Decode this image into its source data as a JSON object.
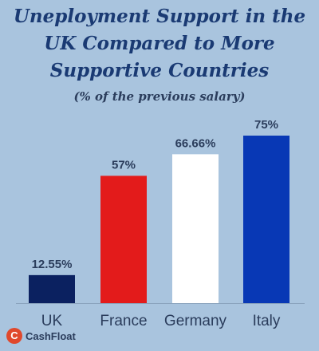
{
  "chart_data": {
    "type": "bar",
    "title": "Uneployment Support in the UK Compared to More Supportive Countries",
    "title_lines": [
      "Uneployment Support in the",
      "UK Compared to More",
      "Supportive Countries"
    ],
    "subtitle": "(% of the previous salary)",
    "categories": [
      "UK",
      "France",
      "Germany",
      "Italy"
    ],
    "values": [
      12.55,
      57,
      66.66,
      75
    ],
    "value_labels": [
      "12.55%",
      "57%",
      "66.66%",
      "75%"
    ],
    "bar_colors": [
      "#0b2160",
      "#e31b1b",
      "#ffffff",
      "#0838b5"
    ],
    "ylim": [
      0,
      75
    ],
    "grid": false,
    "xlabel": "",
    "ylabel": ""
  },
  "brand": {
    "icon_letter": "C",
    "name": "CashFloat",
    "color": "#e0482c"
  }
}
